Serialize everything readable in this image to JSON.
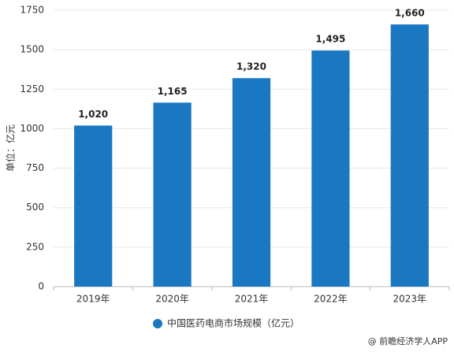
{
  "chart_data": {
    "type": "bar",
    "y_label": "单位：亿元",
    "categories": [
      "2019年",
      "2020年",
      "2021年",
      "2022年",
      "2023年"
    ],
    "series": [
      {
        "name": "中国医药电商市场规模（亿元）",
        "color": "#1a78c2",
        "values": [
          1020,
          1165,
          1320,
          1495,
          1660
        ],
        "value_labels": [
          "1,020",
          "1,165",
          "1,320",
          "1,495",
          "1,660"
        ]
      }
    ],
    "ylim": [
      0,
      1750
    ],
    "yticks": [
      0,
      250,
      500,
      750,
      1000,
      1250,
      1500,
      1750
    ],
    "grid": true,
    "legend": "bottom",
    "source": "@ 前瞻经济学人APP"
  }
}
